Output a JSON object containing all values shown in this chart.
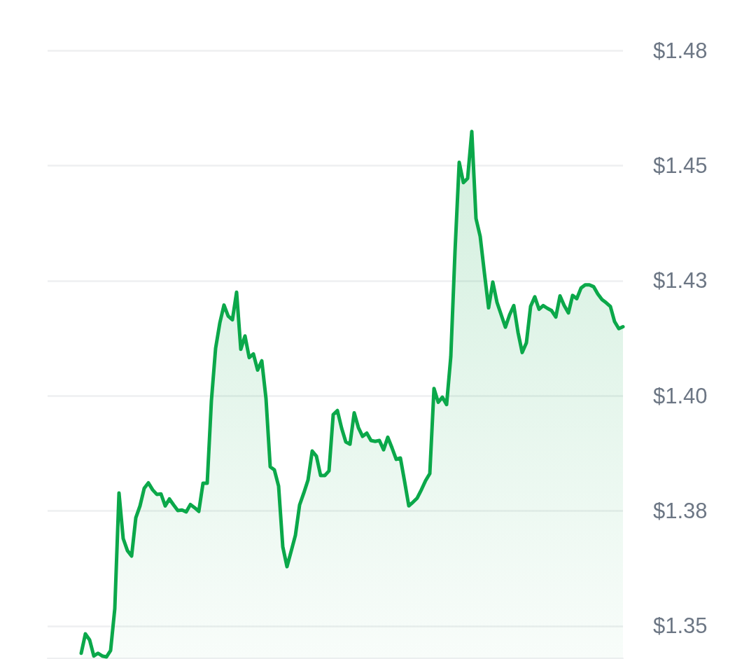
{
  "chart_data": {
    "type": "area",
    "color": "#0ba84a",
    "marker": "none",
    "line_style": "solid",
    "grid": "y",
    "tick_labels": "y",
    "ylim": [
      1.343,
      1.475
    ],
    "yticks": [
      {
        "value": 1.35,
        "label": "$1.35"
      },
      {
        "value": 1.375,
        "label": "$1.38"
      },
      {
        "value": 1.4,
        "label": "$1.40"
      },
      {
        "value": 1.425,
        "label": "$1.43"
      },
      {
        "value": 1.45,
        "label": "$1.45"
      },
      {
        "value": 1.475,
        "label": "$1.48"
      }
    ],
    "categories": [
      null,
      null,
      null,
      null,
      null,
      null,
      null,
      null,
      null,
      null,
      null,
      null,
      null,
      null,
      null,
      null,
      null,
      null,
      null,
      null,
      null,
      null,
      null,
      null,
      null,
      null,
      null,
      null,
      null,
      null,
      null,
      null,
      null,
      null,
      null,
      null,
      null,
      null,
      null,
      null,
      null,
      null,
      null,
      null,
      null,
      null,
      null,
      null,
      null,
      null,
      null,
      null,
      null,
      null,
      null,
      null,
      null,
      null,
      null,
      null,
      null,
      null,
      null,
      null,
      null,
      null,
      null,
      null,
      null,
      null,
      null,
      null,
      null,
      null,
      null,
      null,
      null,
      null,
      null,
      null,
      null,
      null,
      null,
      null,
      null,
      null,
      null,
      null,
      null,
      null,
      null,
      null,
      null,
      null,
      null,
      null,
      null,
      null,
      null,
      null,
      null,
      null,
      null,
      null,
      null,
      null,
      null,
      null,
      null,
      null,
      null,
      null,
      null,
      null,
      null,
      null,
      null,
      null,
      null,
      null,
      null,
      null,
      null,
      null,
      null,
      null,
      null,
      null,
      null,
      null
    ],
    "values": [
      1.3441,
      1.3483,
      1.347,
      1.3435,
      1.3441,
      1.3435,
      1.3433,
      1.3447,
      1.3538,
      1.3789,
      1.369,
      1.3664,
      1.3652,
      1.3735,
      1.3761,
      1.3799,
      1.3811,
      1.3796,
      1.3786,
      1.3787,
      1.3761,
      1.3776,
      1.3763,
      1.3751,
      1.3752,
      1.3748,
      1.3764,
      1.3757,
      1.3749,
      1.381,
      1.381,
      1.3989,
      1.4103,
      1.4158,
      1.4197,
      1.4173,
      1.4165,
      1.4225,
      1.4101,
      1.413,
      1.4083,
      1.4091,
      1.4056,
      1.4076,
      1.3994,
      1.3846,
      1.3839,
      1.3804,
      1.3672,
      1.3629,
      1.3663,
      1.3697,
      1.3763,
      1.3789,
      1.3817,
      1.388,
      1.3869,
      1.3827,
      1.3827,
      1.3837,
      1.3959,
      1.3968,
      1.393,
      1.39,
      1.3895,
      1.3963,
      1.3931,
      1.3912,
      1.3919,
      1.3903,
      1.3901,
      1.3903,
      1.3883,
      1.391,
      1.3887,
      1.3862,
      1.3865,
      1.3814,
      1.3761,
      1.3769,
      1.3778,
      1.3796,
      1.3816,
      1.3831,
      1.4016,
      1.3986,
      1.3997,
      1.3981,
      1.4085,
      1.4313,
      1.4507,
      1.4463,
      1.4472,
      1.4574,
      1.4385,
      1.4346,
      1.4267,
      1.4191,
      1.4247,
      1.4203,
      1.4176,
      1.4149,
      1.4176,
      1.4196,
      1.4138,
      1.4094,
      1.4115,
      1.4194,
      1.4215,
      1.4188,
      1.4196,
      1.419,
      1.4185,
      1.4171,
      1.4217,
      1.4196,
      1.418,
      1.4218,
      1.4211,
      1.4234,
      1.4241,
      1.4241,
      1.4237,
      1.4221,
      1.4209,
      1.4202,
      1.4194,
      1.4161,
      1.4146,
      1.415
    ]
  }
}
